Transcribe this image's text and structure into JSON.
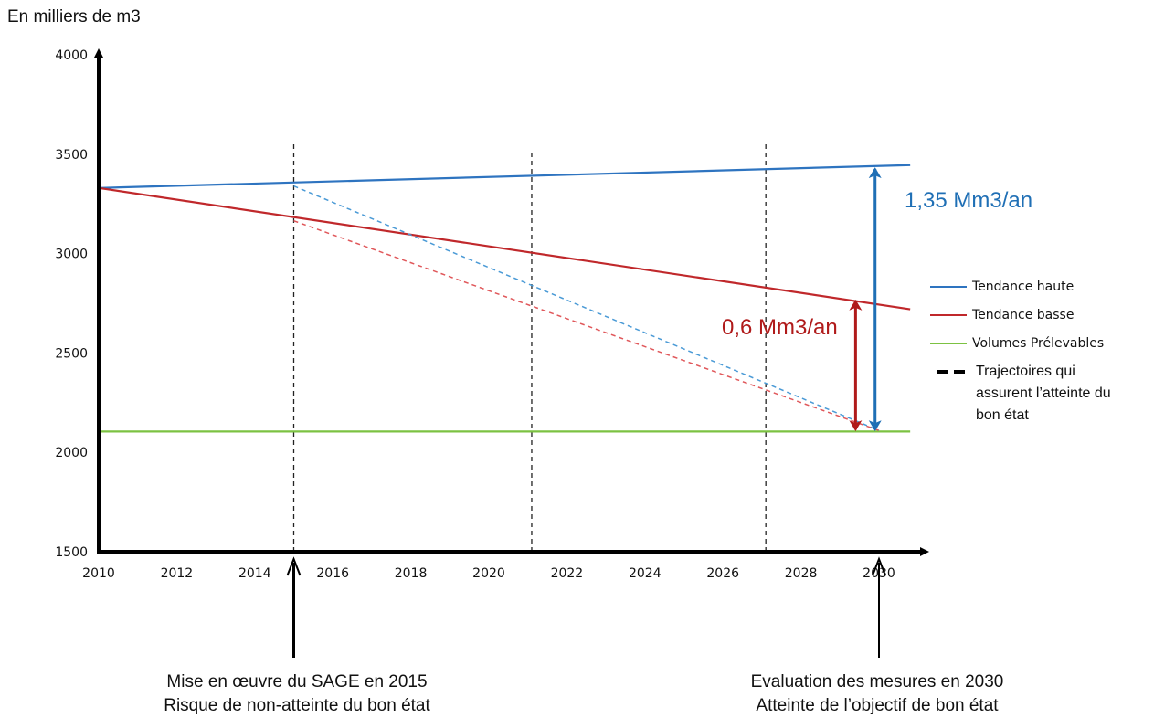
{
  "chart_data": {
    "type": "line",
    "ylabel": "En milliers de m3",
    "xlim": [
      2010,
      2030.8
    ],
    "ylim": [
      1500,
      4000
    ],
    "x_ticks": [
      "2010",
      "2012",
      "2014",
      "2016",
      "2018",
      "2020",
      "2022",
      "2024",
      "2026",
      "2028",
      "2030"
    ],
    "y_ticks": [
      "1500",
      "2000",
      "2500",
      "3000",
      "3500",
      "4000"
    ],
    "series": [
      {
        "name": "Tendance haute",
        "color": "#2e74c0",
        "style": "solid",
        "points": [
          [
            2010,
            3330
          ],
          [
            2030.8,
            3445
          ]
        ]
      },
      {
        "name": "Tendance basse",
        "color": "#c0282b",
        "style": "solid",
        "points": [
          [
            2010,
            3330
          ],
          [
            2030.8,
            2720
          ]
        ]
      },
      {
        "name": "Volumes Prélevables",
        "color": "#7cc242",
        "style": "solid",
        "points": [
          [
            2010,
            2105
          ],
          [
            2030.8,
            2105
          ]
        ]
      }
    ],
    "trajectories": [
      {
        "color": "#4a9ad6",
        "points": [
          [
            2015,
            3340
          ],
          [
            2030,
            2110
          ]
        ]
      },
      {
        "color": "#e0575a",
        "points": [
          [
            2015,
            3165
          ],
          [
            2030,
            2110
          ]
        ]
      }
    ],
    "vlines": [
      {
        "x": 2015,
        "ymax": 3560
      },
      {
        "x": 2021.1,
        "ymax": 3510
      },
      {
        "x": 2027.1,
        "ymax": 3560
      }
    ],
    "gaps": [
      {
        "x": 2029.9,
        "y1": 2115,
        "y2": 3425,
        "color": "#1f6fb5"
      },
      {
        "x": 2029.4,
        "y1": 2115,
        "y2": 2760,
        "color": "#b01a1a"
      }
    ],
    "annotations": [
      {
        "text": "1,35 Mm3/an",
        "color": "#1f6fb5"
      },
      {
        "text": "0,6 Mm3/an",
        "color": "#b01a1a"
      }
    ],
    "legend": {
      "position": "right",
      "dashed_entry": "Trajectoires qui assurent l’atteinte du bon état"
    },
    "captions": [
      {
        "x": 2015,
        "line1": "Mise en œuvre du SAGE en 2015",
        "line2": "Risque de non-atteinte  du bon état"
      },
      {
        "x": 2030,
        "line1": "Evaluation  des mesures en 2030",
        "line2": "Atteinte  de l’objectif de bon état"
      }
    ]
  }
}
